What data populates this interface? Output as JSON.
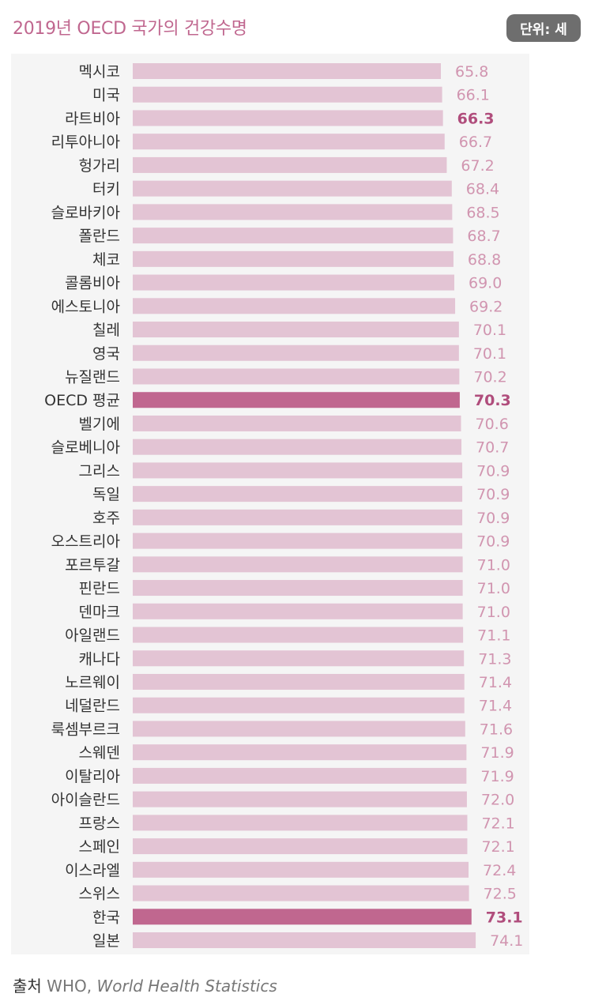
{
  "title": "2019년 OECD 국가의 건강수명",
  "unit": "단위: 세",
  "source": {
    "label": "출처",
    "org": "WHO,",
    "publication": "World Health Statistics"
  },
  "colors": {
    "bar": "#e3c4d4",
    "bar_highlight": "#c0678f",
    "value": "#d195b0",
    "value_highlight": "#b04d7c",
    "label": "#333333",
    "panel": "#f5f5f5"
  },
  "chart_data": {
    "type": "bar",
    "orientation": "horizontal",
    "categories": [
      "멕시코",
      "미국",
      "라트비아",
      "리투아니아",
      "헝가리",
      "터키",
      "슬로바키아",
      "폴란드",
      "체코",
      "콜롬비아",
      "에스토니아",
      "칠레",
      "영국",
      "뉴질랜드",
      "OECD 평균",
      "벨기에",
      "슬로베니아",
      "그리스",
      "독일",
      "호주",
      "오스트리아",
      "포르투갈",
      "핀란드",
      "덴마크",
      "아일랜드",
      "캐나다",
      "노르웨이",
      "네덜란드",
      "룩셈부르크",
      "스웨덴",
      "이탈리아",
      "아이슬란드",
      "프랑스",
      "스페인",
      "이스라엘",
      "스위스",
      "한국",
      "일본"
    ],
    "values": [
      65.8,
      66.1,
      66.3,
      66.7,
      67.2,
      68.4,
      68.5,
      68.7,
      68.8,
      69.0,
      69.2,
      70.1,
      70.1,
      70.2,
      70.3,
      70.6,
      70.7,
      70.9,
      70.9,
      70.9,
      70.9,
      71.0,
      71.0,
      71.0,
      71.1,
      71.3,
      71.4,
      71.4,
      71.6,
      71.9,
      71.9,
      72.0,
      72.1,
      72.1,
      72.4,
      72.5,
      73.1,
      74.1
    ],
    "value_labels": [
      "65.8",
      "66.1",
      "66.3",
      "66.7",
      "67.2",
      "68.4",
      "68.5",
      "68.7",
      "68.8",
      "69.0",
      "69.2",
      "70.1",
      "70.1",
      "70.2",
      "70.3",
      "70.6",
      "70.7",
      "70.9",
      "70.9",
      "70.9",
      "70.9",
      "71.0",
      "71.0",
      "71.0",
      "71.1",
      "71.3",
      "71.4",
      "71.4",
      "71.6",
      "71.9",
      "71.9",
      "72.0",
      "72.1",
      "72.1",
      "72.4",
      "72.5",
      "73.1",
      "74.1"
    ],
    "highlight": [
      "OECD 평균",
      "한국"
    ],
    "bold_values": [
      "라트비아",
      "OECD 평균",
      "한국"
    ],
    "grid": false,
    "legend": "none"
  }
}
